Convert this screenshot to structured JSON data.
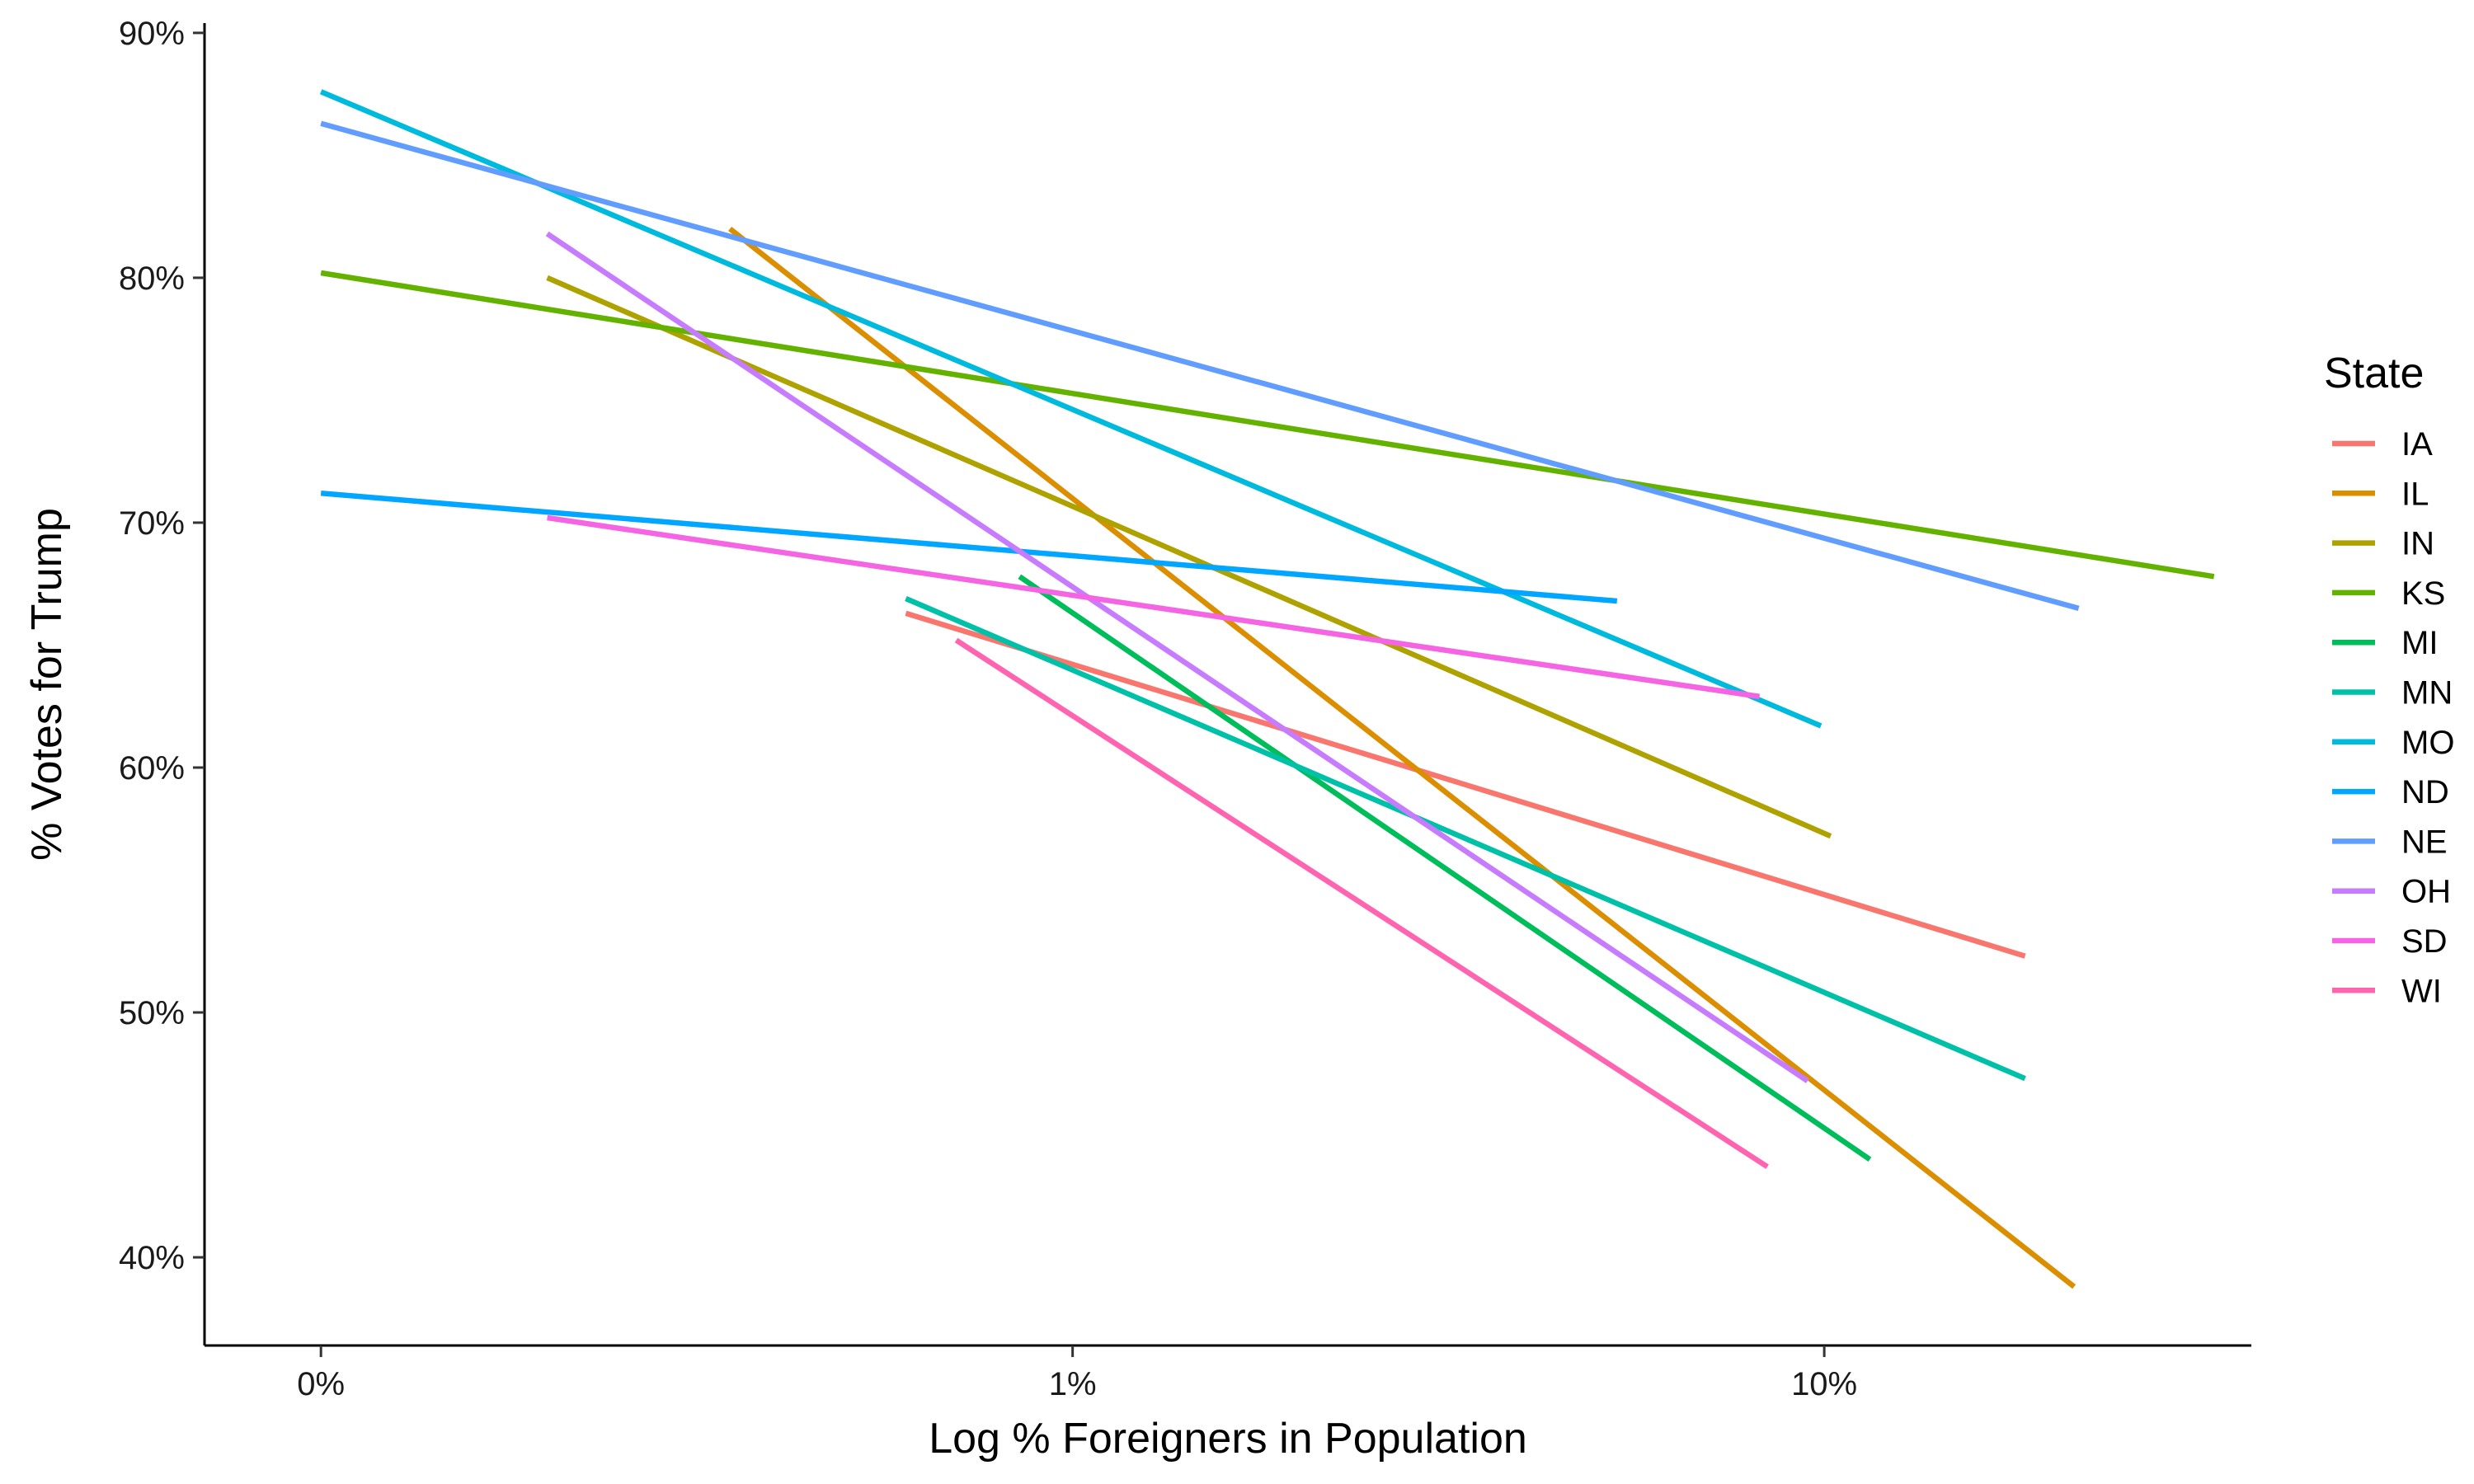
{
  "chart_data": {
    "type": "line",
    "xlabel": "Log % Foreigners in Population",
    "ylabel": "% Votes for Trump",
    "x_scale": "log",
    "x_ticks": [
      {
        "value": 0.1,
        "label": "0%"
      },
      {
        "value": 1,
        "label": "1%"
      },
      {
        "value": 10,
        "label": "10%"
      }
    ],
    "y_ticks": [
      {
        "value": 40,
        "label": "40%"
      },
      {
        "value": 50,
        "label": "50%"
      },
      {
        "value": 60,
        "label": "60%"
      },
      {
        "value": 70,
        "label": "70%"
      },
      {
        "value": 80,
        "label": "80%"
      },
      {
        "value": 90,
        "label": "90%"
      }
    ],
    "xlim": [
      0.07,
      37
    ],
    "ylim": [
      36.4,
      90.4
    ],
    "grid": false,
    "legend": {
      "title": "State",
      "position": "right"
    },
    "series": [
      {
        "name": "IA",
        "color": "#F8766D",
        "x": [
          0.6,
          18.5
        ],
        "y": [
          66.3,
          52.3
        ]
      },
      {
        "name": "IL",
        "color": "#DB8E00",
        "x": [
          0.35,
          21.5
        ],
        "y": [
          82.0,
          38.8
        ]
      },
      {
        "name": "IN",
        "color": "#AEA200",
        "x": [
          0.2,
          10.2
        ],
        "y": [
          80.0,
          57.2
        ]
      },
      {
        "name": "KS",
        "color": "#64B200",
        "x": [
          0.1,
          33.0
        ],
        "y": [
          80.2,
          67.8
        ]
      },
      {
        "name": "MI",
        "color": "#00BD5C",
        "x": [
          0.85,
          11.5
        ],
        "y": [
          67.8,
          44.0
        ]
      },
      {
        "name": "MN",
        "color": "#00C1A7",
        "x": [
          0.6,
          18.5
        ],
        "y": [
          66.9,
          47.3
        ]
      },
      {
        "name": "MO",
        "color": "#00BADE",
        "x": [
          0.1,
          9.9
        ],
        "y": [
          87.6,
          61.7
        ]
      },
      {
        "name": "ND",
        "color": "#00A6FF",
        "x": [
          0.1,
          5.3
        ],
        "y": [
          71.2,
          66.8
        ]
      },
      {
        "name": "NE",
        "color": "#619CFF",
        "x": [
          0.1,
          21.8
        ],
        "y": [
          86.3,
          66.5
        ]
      },
      {
        "name": "OH",
        "color": "#C77CFF",
        "x": [
          0.2,
          9.5
        ],
        "y": [
          81.8,
          47.2
        ]
      },
      {
        "name": "SD",
        "color": "#F564E3",
        "x": [
          0.2,
          8.2
        ],
        "y": [
          70.2,
          62.9
        ]
      },
      {
        "name": "WI",
        "color": "#FF64B0",
        "x": [
          0.7,
          8.4
        ],
        "y": [
          65.2,
          43.7
        ]
      }
    ]
  }
}
